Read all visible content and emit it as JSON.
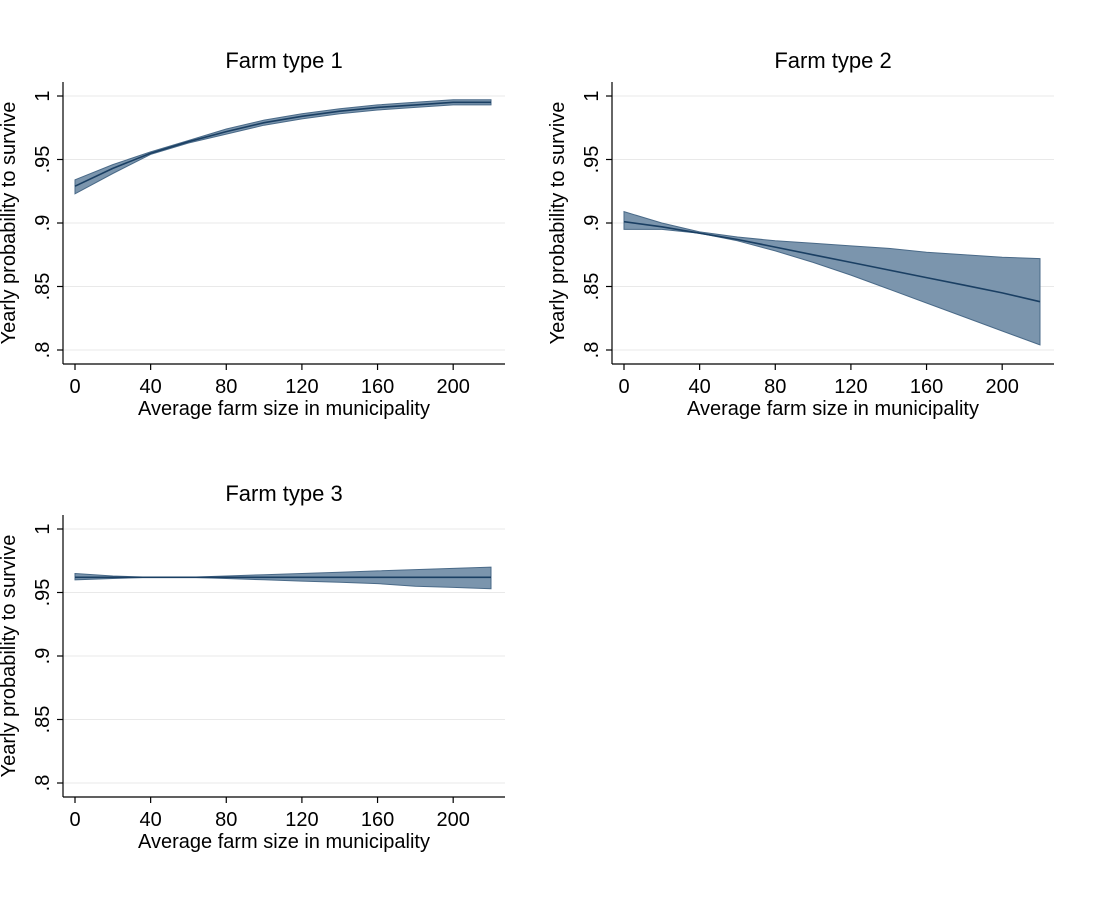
{
  "colors": {
    "band_fill": "#7b95ad",
    "band_stroke": "#4a6a88",
    "line": "#1a3f63",
    "grid": "#e9e9e9",
    "axis": "#000000"
  },
  "chart_data": [
    {
      "type": "area",
      "title": "Farm type 1",
      "xlabel": "Average farm size in municipality",
      "ylabel": "Yearly probability to survive",
      "xlim": [
        0,
        220
      ],
      "ylim": [
        0.8,
        1.0
      ],
      "xticks": [
        0,
        40,
        80,
        120,
        160,
        200
      ],
      "xtick_labels": [
        "0",
        "40",
        "80",
        "120",
        "160",
        "200"
      ],
      "yticks": [
        0.8,
        0.85,
        0.9,
        0.95,
        1.0
      ],
      "ytick_labels": [
        ".8",
        ".85",
        ".9",
        ".95",
        "1"
      ],
      "grid": true,
      "x": [
        0,
        20,
        40,
        60,
        80,
        100,
        120,
        140,
        160,
        180,
        200,
        220
      ],
      "fit": [
        0.929,
        0.943,
        0.955,
        0.964,
        0.972,
        0.979,
        0.984,
        0.988,
        0.991,
        0.993,
        0.995,
        0.995
      ],
      "lower": [
        0.923,
        0.939,
        0.954,
        0.963,
        0.97,
        0.977,
        0.982,
        0.986,
        0.989,
        0.991,
        0.993,
        0.993
      ],
      "upper": [
        0.934,
        0.946,
        0.956,
        0.965,
        0.974,
        0.981,
        0.986,
        0.99,
        0.993,
        0.995,
        0.997,
        0.997
      ]
    },
    {
      "type": "area",
      "title": "Farm type 2",
      "xlabel": "Average farm size in municipality",
      "ylabel": "Yearly probability to survive",
      "xlim": [
        0,
        220
      ],
      "ylim": [
        0.8,
        1.0
      ],
      "xticks": [
        0,
        40,
        80,
        120,
        160,
        200
      ],
      "xtick_labels": [
        "0",
        "40",
        "80",
        "120",
        "160",
        "200"
      ],
      "yticks": [
        0.8,
        0.85,
        0.9,
        0.95,
        1.0
      ],
      "ytick_labels": [
        ".8",
        ".85",
        ".9",
        ".95",
        "1"
      ],
      "grid": true,
      "x": [
        0,
        20,
        40,
        60,
        80,
        100,
        120,
        140,
        160,
        180,
        200,
        220
      ],
      "fit": [
        0.901,
        0.897,
        0.892,
        0.887,
        0.881,
        0.875,
        0.869,
        0.863,
        0.857,
        0.851,
        0.845,
        0.838
      ],
      "lower": [
        0.895,
        0.895,
        0.892,
        0.886,
        0.878,
        0.869,
        0.859,
        0.848,
        0.837,
        0.826,
        0.815,
        0.804
      ],
      "upper": [
        0.909,
        0.9,
        0.893,
        0.889,
        0.886,
        0.884,
        0.882,
        0.88,
        0.877,
        0.875,
        0.873,
        0.872
      ]
    },
    {
      "type": "area",
      "title": "Farm type 3",
      "xlabel": "Average farm size in municipality",
      "ylabel": "Yearly probability to survive",
      "xlim": [
        0,
        220
      ],
      "ylim": [
        0.8,
        1.0
      ],
      "xticks": [
        0,
        40,
        80,
        120,
        160,
        200
      ],
      "xtick_labels": [
        "0",
        "40",
        "80",
        "120",
        "160",
        "200"
      ],
      "yticks": [
        0.8,
        0.85,
        0.9,
        0.95,
        1.0
      ],
      "ytick_labels": [
        ".8",
        ".85",
        ".9",
        ".95",
        "1"
      ],
      "grid": true,
      "x": [
        0,
        20,
        40,
        60,
        80,
        100,
        120,
        140,
        160,
        180,
        200,
        220
      ],
      "fit": [
        0.962,
        0.962,
        0.962,
        0.962,
        0.962,
        0.962,
        0.962,
        0.962,
        0.962,
        0.962,
        0.962,
        0.962
      ],
      "lower": [
        0.96,
        0.961,
        0.962,
        0.962,
        0.961,
        0.96,
        0.959,
        0.958,
        0.957,
        0.955,
        0.954,
        0.953
      ],
      "upper": [
        0.965,
        0.963,
        0.962,
        0.962,
        0.963,
        0.964,
        0.965,
        0.966,
        0.967,
        0.968,
        0.969,
        0.97
      ]
    }
  ]
}
